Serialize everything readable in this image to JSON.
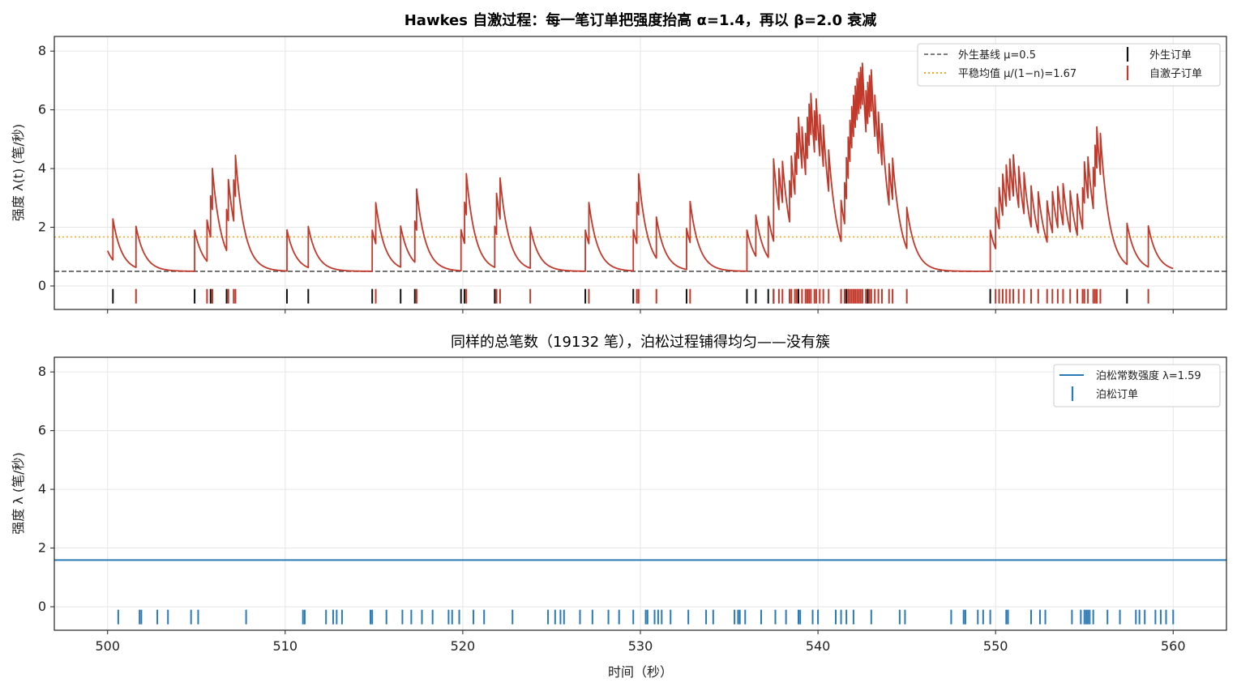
{
  "chart_data": [
    {
      "type": "line",
      "title": "Hawkes 自激过程：每一笔订单把强度抬高 α=1.4，再以 β=2.0 衰减",
      "xlabel": "",
      "ylabel": "强度 λ(t) (笔/秒)",
      "xlim": [
        497,
        563
      ],
      "ylim": [
        -0.8,
        8.5
      ],
      "xticks": [
        500,
        510,
        520,
        530,
        540,
        550,
        560
      ],
      "yticks": [
        0,
        2,
        4,
        6,
        8
      ],
      "grid": true,
      "legend_position": "top-right",
      "params": {
        "mu": 0.5,
        "alpha": 1.4,
        "beta": 2.0
      },
      "series": [
        {
          "name": "外生基线 μ=0.5",
          "kind": "hline",
          "y": 0.5,
          "color": "#555555",
          "style": "dashed"
        },
        {
          "name": "平稳均值 μ/(1−n)=1.67",
          "kind": "hline",
          "y": 1.67,
          "color": "#f5a623",
          "style": "dotted"
        },
        {
          "name": "外生订单",
          "kind": "events",
          "y": -0.35,
          "color": "#111111",
          "x": [
            500.3,
            504.9,
            505.8,
            506.7,
            510.1,
            511.3,
            514.9,
            516.5,
            517.3,
            519.9,
            520.1,
            521.8,
            526.9,
            529.6,
            532.6,
            536.0,
            536.5,
            537.2,
            537.5,
            538.9,
            541.6,
            542.8,
            549.7,
            557.4
          ]
        },
        {
          "name": "自激子订单",
          "kind": "events",
          "y": -0.35,
          "color": "#c0392b",
          "x": [
            501.6,
            505.6,
            505.9,
            506.8,
            507.1,
            507.2,
            515.1,
            517.4,
            520.2,
            521.9,
            522.1,
            523.8,
            527.1,
            529.8,
            529.9,
            530.9,
            532.8,
            537.5,
            537.8,
            538.0,
            538.4,
            538.5,
            538.7,
            538.8,
            539.1,
            539.3,
            539.4,
            539.5,
            539.6,
            539.8,
            539.9,
            540.1,
            540.3,
            540.6,
            541.3,
            541.5,
            541.7,
            541.8,
            541.9,
            542.0,
            542.1,
            542.2,
            542.3,
            542.4,
            542.5,
            542.7,
            542.9,
            543.0,
            543.2,
            543.4,
            543.6,
            544.0,
            544.2,
            545.0,
            550.0,
            550.2,
            550.4,
            550.6,
            550.8,
            551.0,
            551.3,
            551.6,
            552.0,
            552.4,
            552.9,
            553.2,
            553.5,
            553.8,
            554.2,
            554.6,
            554.9,
            555.0,
            555.2,
            555.5,
            555.6,
            555.7,
            555.9,
            558.6
          ]
        }
      ]
    },
    {
      "type": "line",
      "title": "同样的总笔数（19132 笔），泊松过程铺得均匀——没有簇",
      "xlabel": "时间（秒）",
      "ylabel": "强度 λ (笔/秒)",
      "xlim": [
        497,
        563
      ],
      "ylim": [
        -0.8,
        8.5
      ],
      "xticks": [
        500,
        510,
        520,
        530,
        540,
        550,
        560
      ],
      "yticks": [
        0,
        2,
        4,
        6,
        8
      ],
      "grid": true,
      "legend_position": "top-right",
      "series": [
        {
          "name": "泊松常数强度 λ=1.59",
          "kind": "hline",
          "y": 1.59,
          "color": "#2a7ab5",
          "style": "solid"
        },
        {
          "name": "泊松订单",
          "kind": "events",
          "y": -0.35,
          "color": "#2a7ab5",
          "x": [
            500.6,
            501.8,
            501.9,
            502.8,
            503.4,
            504.7,
            505.1,
            507.8,
            511.0,
            511.1,
            512.3,
            512.7,
            512.9,
            513.2,
            514.8,
            514.9,
            515.7,
            516.6,
            517.1,
            517.7,
            518.3,
            519.2,
            519.4,
            519.8,
            520.6,
            521.2,
            522.8,
            524.8,
            525.2,
            525.5,
            525.7,
            526.6,
            527.3,
            528.2,
            528.8,
            529.6,
            530.3,
            530.4,
            530.8,
            531.0,
            531.2,
            531.7,
            532.7,
            533.7,
            534.1,
            535.3,
            535.5,
            535.6,
            535.9,
            536.8,
            537.6,
            538.2,
            538.9,
            539.0,
            539.7,
            540.0,
            541.0,
            541.3,
            541.6,
            542.0,
            543.0,
            544.6,
            544.9,
            547.5,
            548.2,
            548.3,
            549.0,
            549.3,
            549.7,
            550.6,
            550.7,
            552.0,
            552.5,
            552.8,
            554.3,
            554.8,
            555.0,
            555.1,
            555.2,
            555.3,
            555.5,
            556.3,
            557.0,
            557.9,
            558.1,
            558.4,
            559.0,
            559.3,
            559.6,
            560.0
          ]
        }
      ]
    }
  ]
}
